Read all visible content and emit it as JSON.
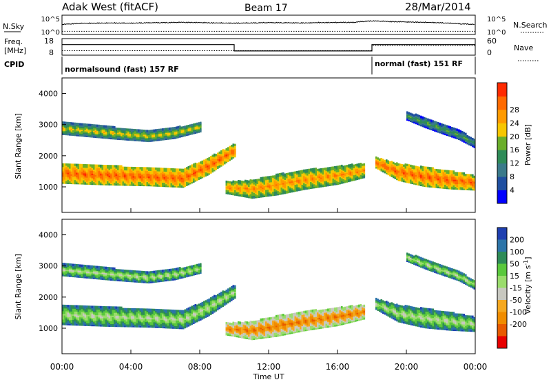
{
  "header": {
    "station": "Adak West (fitACF)",
    "beam": "Beam 17",
    "date": "28/Mar/2014"
  },
  "top_panels": {
    "nsky_label": "N.Sky",
    "nsky_ticks": [
      "10^5",
      "10^0"
    ],
    "nsearch_label": "N.Search",
    "nsearch_ticks": [
      "10^5",
      "10^0"
    ],
    "freq_label": "Freq.",
    "freq_unit": "[MHz]",
    "freq_ticks": [
      "18",
      "8"
    ],
    "nave_label": "Nave",
    "nave_ticks": [
      "60",
      "0"
    ],
    "cpid_label": "CPID",
    "cpid_segments": [
      {
        "label": "normalsound (fast) 157 RF",
        "start_hour": 0,
        "end_hour": 18
      },
      {
        "label": "normal (fast) 151 RF",
        "start_hour": 18,
        "end_hour": 24
      }
    ]
  },
  "chart_data": [
    {
      "type": "line",
      "title": "N.Sky / N.Search",
      "x_range": [
        0,
        24
      ],
      "y_scale": "log",
      "y_range": [
        1,
        100000
      ],
      "series": [
        {
          "name": "N.Sky",
          "style": "solid",
          "x": [
            0,
            1,
            2,
            3,
            4,
            5,
            6,
            7,
            8,
            9,
            10,
            11,
            12,
            13,
            14,
            15,
            16,
            17,
            18,
            19,
            20,
            21,
            22,
            23,
            24
          ],
          "y": [
            300,
            600,
            700,
            800,
            700,
            900,
            1000,
            1200,
            1000,
            800,
            700,
            800,
            1000,
            900,
            800,
            1000,
            1100,
            1200,
            3000,
            2000,
            1500,
            1200,
            900,
            500,
            300
          ]
        },
        {
          "name": "N.Search",
          "style": "dotted",
          "x": [
            0,
            6,
            12,
            18,
            24
          ],
          "y": [
            5,
            5,
            5,
            5,
            5
          ]
        }
      ]
    },
    {
      "type": "line",
      "title": "Freq. / Nave",
      "x_range": [
        0,
        24
      ],
      "series": [
        {
          "name": "Freq.",
          "style": "solid",
          "y_range": [
            8,
            18
          ],
          "x": [
            0,
            10,
            10,
            18,
            18,
            24
          ],
          "y": [
            14.5,
            14.5,
            10.3,
            10.3,
            14.5,
            14.5
          ]
        },
        {
          "name": "Nave",
          "style": "dotted",
          "y_range": [
            0,
            60
          ],
          "x": [
            0,
            10,
            10,
            18,
            18,
            24
          ],
          "y": [
            15,
            15,
            15,
            15,
            35,
            35
          ]
        }
      ]
    },
    {
      "type": "heatmap",
      "title": "Power",
      "xlabel": "Time UT",
      "ylabel": "Slant Range [km]",
      "x_range": [
        0,
        24
      ],
      "ylim": [
        180,
        4500
      ],
      "yticks": [
        1000,
        2000,
        3000,
        4000
      ],
      "colorbar": {
        "label": "Power [dB]",
        "ticks": [
          "4",
          "8",
          "12",
          "16",
          "20",
          "24",
          "28"
        ],
        "colors": [
          "#0000ff",
          "#1f4fa0",
          "#3a7a8a",
          "#2e8b57",
          "#6aae2a",
          "#f7c600",
          "#ff9a00",
          "#ff6a00",
          "#ff2a00"
        ]
      },
      "bands": [
        {
          "x": [
            0,
            2.5,
            5,
            7,
            8.5,
            10
          ],
          "y_center": [
            1450,
            1400,
            1350,
            1300,
            1700,
            2200
          ],
          "width": [
            300,
            300,
            280,
            280,
            260,
            200
          ],
          "level": 0.85
        },
        {
          "x": [
            0,
            3,
            5,
            6.5,
            8
          ],
          "y_center": [
            2900,
            2750,
            2650,
            2750,
            2950
          ],
          "width": [
            180,
            180,
            160,
            160,
            150
          ],
          "level": 0.6
        },
        {
          "x": [
            9.5,
            11,
            12.5,
            14,
            16,
            17.5
          ],
          "y_center": [
            1000,
            950,
            1100,
            1250,
            1400,
            1550
          ],
          "width": [
            180,
            280,
            320,
            300,
            280,
            220
          ],
          "level": 0.75
        },
        {
          "x": [
            18.2,
            19.5,
            21,
            22.5,
            24
          ],
          "y_center": [
            1800,
            1500,
            1350,
            1250,
            1150
          ],
          "width": [
            160,
            260,
            300,
            280,
            220
          ],
          "level": 0.85
        },
        {
          "x": [
            20,
            21,
            22,
            23,
            24
          ],
          "y_center": [
            3300,
            3100,
            2900,
            2700,
            2400
          ],
          "width": [
            120,
            150,
            150,
            140,
            130
          ],
          "level": 0.45
        }
      ]
    },
    {
      "type": "heatmap",
      "title": "Velocity",
      "xlabel": "Time UT",
      "ylabel": "Slant Range [km]",
      "x_range": [
        0,
        24
      ],
      "ylim": [
        180,
        4500
      ],
      "yticks": [
        1000,
        2000,
        3000,
        4000
      ],
      "xticks": [
        "00:00",
        "04:00",
        "08:00",
        "12:00",
        "16:00",
        "20:00",
        "00:00"
      ],
      "colorbar": {
        "label": "Velocity [m s^-1]",
        "ticks": [
          "200",
          "100",
          "50",
          "15",
          "-15",
          "-50",
          "-100",
          "-200"
        ],
        "colors": [
          "#1e3fb0",
          "#2c74a8",
          "#2e8b57",
          "#5ac83c",
          "#9adc6c",
          "#c8c8c0",
          "#f5a820",
          "#f08c00",
          "#e85a00",
          "#e80000"
        ]
      },
      "bands": [
        {
          "x": [
            0,
            2.5,
            5,
            7,
            8.5,
            10
          ],
          "y_center": [
            1450,
            1400,
            1350,
            1300,
            1700,
            2200
          ],
          "width": [
            300,
            300,
            280,
            280,
            260,
            200
          ],
          "level": 0.5
        },
        {
          "x": [
            0,
            3,
            5,
            6.5,
            8
          ],
          "y_center": [
            2900,
            2750,
            2650,
            2750,
            2950
          ],
          "width": [
            180,
            180,
            160,
            160,
            150
          ],
          "level": 0.5
        },
        {
          "x": [
            9.5,
            11,
            12.5,
            14,
            16,
            17.5
          ],
          "y_center": [
            1000,
            950,
            1100,
            1250,
            1400,
            1550
          ],
          "width": [
            180,
            280,
            320,
            300,
            280,
            220
          ],
          "level": 0.78
        },
        {
          "x": [
            18.2,
            19.5,
            21,
            22.5,
            24
          ],
          "y_center": [
            1800,
            1500,
            1350,
            1250,
            1150
          ],
          "width": [
            160,
            260,
            300,
            280,
            220
          ],
          "level": 0.5
        },
        {
          "x": [
            20,
            21,
            22,
            23,
            24
          ],
          "y_center": [
            3300,
            3100,
            2900,
            2700,
            2400
          ],
          "width": [
            120,
            150,
            150,
            140,
            130
          ],
          "level": 0.5
        }
      ]
    }
  ]
}
